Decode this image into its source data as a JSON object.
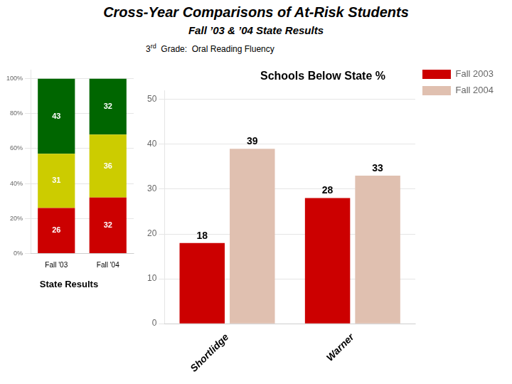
{
  "chart_data": [
    {
      "type": "bar",
      "title": "Cross-Year Comparisons of At-Risk Students",
      "subtitle": "Fall ’03 & ’04 State Results",
      "annotations": [
        "3",
        "rd",
        "  Grade:  Oral Reading Fluency",
        "Schools Below State %"
      ],
      "categories": [
        "Shortlidge",
        "Warner"
      ],
      "series": [
        {
          "name": "Fall 2003",
          "color": "#cc0000",
          "values": [
            18,
            28
          ]
        },
        {
          "name": "Fall 2004",
          "color": "#e0c0b0",
          "values": [
            39,
            33
          ]
        }
      ],
      "ylim": [
        0,
        52
      ],
      "yticks": [
        0,
        10,
        20,
        30,
        40,
        50
      ],
      "grid": true,
      "legend": "right",
      "data_labels": true
    },
    {
      "type": "bar",
      "title": "State Results",
      "categories": [
        "Fall '03",
        "Fall '04"
      ],
      "series": [
        {
          "color": "#cc0000",
          "values": [
            26,
            32
          ]
        },
        {
          "color": "#cccc00",
          "values": [
            31,
            36
          ]
        },
        {
          "color": "#006600",
          "values": [
            43,
            32
          ]
        }
      ],
      "stacked": true,
      "ylim": [
        0,
        105
      ],
      "yticks": [
        {
          "value": 0,
          "label": "0%"
        },
        {
          "value": 20,
          "label": "20%"
        },
        {
          "value": 40,
          "label": "40%"
        },
        {
          "value": 60,
          "label": "60%"
        },
        {
          "value": 80,
          "label": "80%"
        },
        {
          "value": 100,
          "label": "100%"
        }
      ],
      "grid": true,
      "data_labels": true
    }
  ]
}
